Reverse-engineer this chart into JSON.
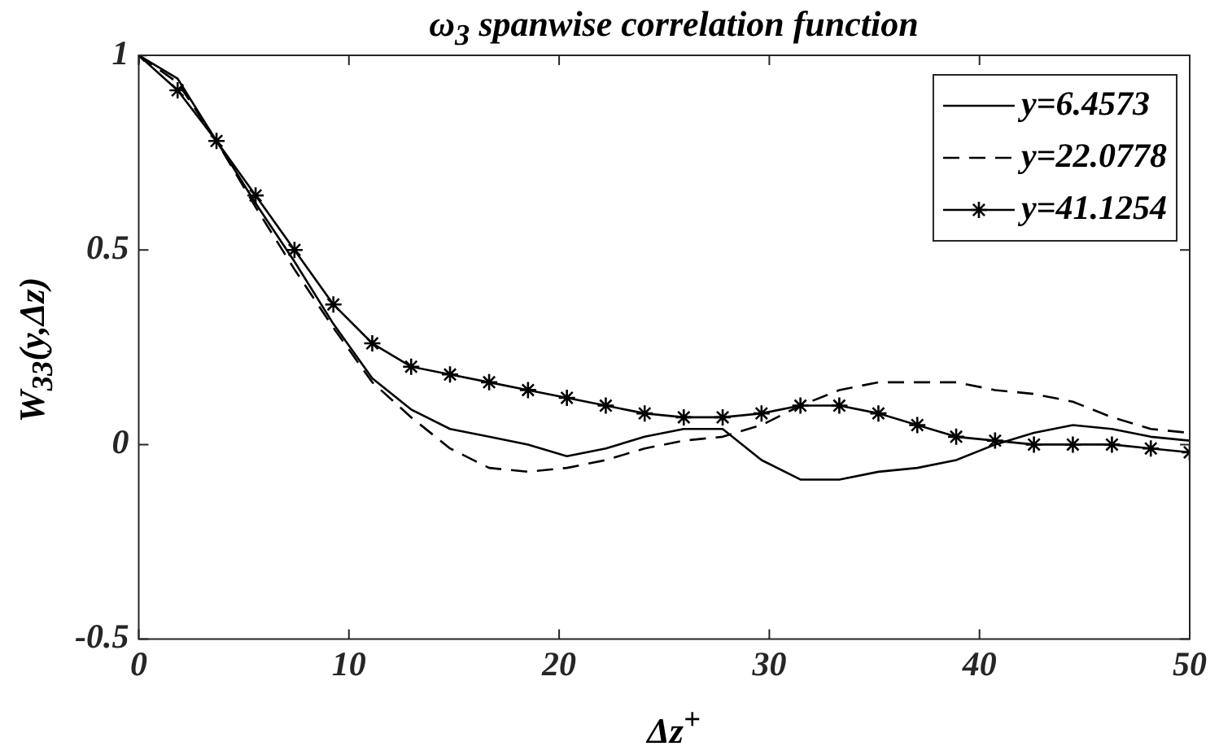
{
  "chart_data": {
    "type": "line",
    "title": "ω$_{3}$ spanwise correlation function",
    "xlabel": "Δz$^{+}$",
    "ylabel": "W$_{33}$(y,Δz)",
    "x": [
      0,
      1.85,
      3.7,
      5.56,
      7.41,
      9.26,
      11.11,
      12.96,
      14.81,
      16.67,
      18.52,
      20.37,
      22.22,
      24.07,
      25.93,
      27.78,
      29.63,
      31.48,
      33.33,
      35.19,
      37.04,
      38.89,
      40.74,
      42.59,
      44.44,
      46.3,
      48.15,
      50
    ],
    "series": [
      {
        "name": "y=6.4573",
        "color": "#000000",
        "line_style": "solid",
        "marker": "none",
        "values": [
          1,
          0.94,
          0.78,
          0.62,
          0.47,
          0.31,
          0.17,
          0.09,
          0.04,
          0.02,
          0,
          -0.03,
          -0.01,
          0.02,
          0.04,
          0.04,
          -0.04,
          -0.09,
          -0.09,
          -0.07,
          -0.06,
          -0.04,
          0,
          0.03,
          0.05,
          0.04,
          0.02,
          0.01
        ]
      },
      {
        "name": "y=22.0778",
        "color": "#000000",
        "line_style": "dashed",
        "marker": "none",
        "values": [
          1,
          0.93,
          0.78,
          0.61,
          0.45,
          0.3,
          0.16,
          0.07,
          -0.01,
          -0.06,
          -0.07,
          -0.06,
          -0.04,
          -0.01,
          0.01,
          0.02,
          0.05,
          0.1,
          0.14,
          0.16,
          0.16,
          0.16,
          0.14,
          0.13,
          0.11,
          0.07,
          0.04,
          0.03
        ]
      },
      {
        "name": "y=41.1254",
        "color": "#000000",
        "line_style": "solid",
        "marker": "cross",
        "values": [
          1,
          0.91,
          0.78,
          0.64,
          0.5,
          0.36,
          0.26,
          0.2,
          0.18,
          0.16,
          0.14,
          0.12,
          0.1,
          0.08,
          0.07,
          0.07,
          0.08,
          0.1,
          0.1,
          0.08,
          0.05,
          0.02,
          0.01,
          0,
          0,
          0,
          -0.01,
          -0.02
        ]
      }
    ],
    "xlim": [
      0,
      50
    ],
    "xticks": [
      0,
      10,
      20,
      30,
      40,
      50
    ],
    "ylim": [
      -0.5,
      1
    ],
    "yticks": [
      -0.5,
      0,
      0.5,
      1
    ],
    "grid": false,
    "legend": "top right"
  }
}
